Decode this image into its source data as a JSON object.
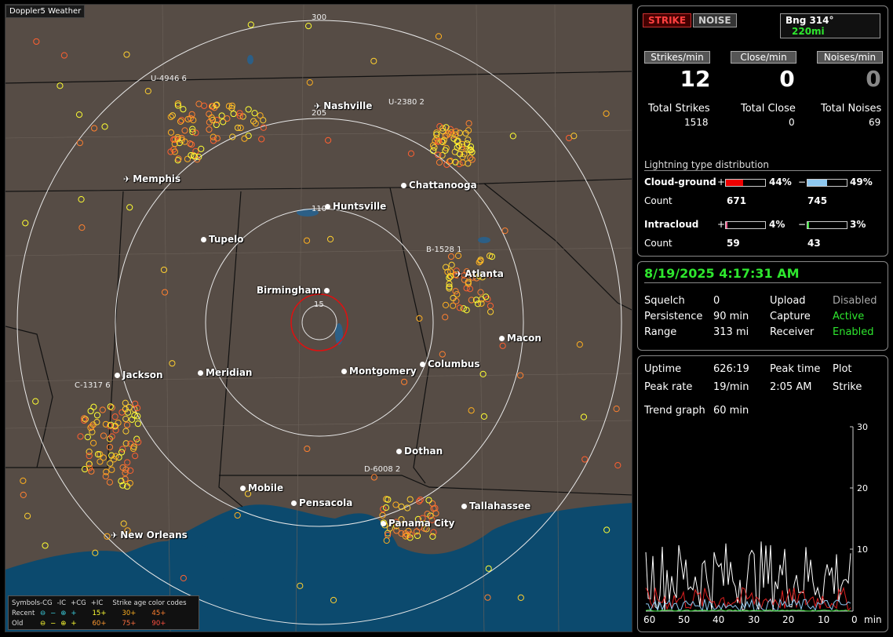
{
  "app_title": "Doppler5 Weather",
  "map": {
    "cities": [
      {
        "name": "Nashville",
        "type": "airport"
      },
      {
        "name": "Memphis",
        "type": "airport"
      },
      {
        "name": "Chattanooga",
        "type": "dot"
      },
      {
        "name": "Huntsville",
        "type": "dot"
      },
      {
        "name": "Tupelo",
        "type": "dot"
      },
      {
        "name": "Atlanta",
        "type": "airport"
      },
      {
        "name": "Birmingham",
        "type": "dot"
      },
      {
        "name": "Macon",
        "type": "dot"
      },
      {
        "name": "Jackson",
        "type": "dot"
      },
      {
        "name": "Meridian",
        "type": "dot"
      },
      {
        "name": "Montgomery",
        "type": "dot"
      },
      {
        "name": "Columbus",
        "type": "dot"
      },
      {
        "name": "Dothan",
        "type": "dot"
      },
      {
        "name": "Mobile",
        "type": "dot"
      },
      {
        "name": "Pensacola",
        "type": "dot"
      },
      {
        "name": "Tallahassee",
        "type": "dot"
      },
      {
        "name": "Panama City",
        "type": "dot"
      },
      {
        "name": "New Orleans",
        "type": "airport"
      }
    ],
    "range_labels": [
      "300",
      "205",
      "110",
      "15"
    ],
    "storm_cells": [
      "U-4946 6",
      "U-2380 2",
      "B-1528 1",
      "C-1317 6",
      "D-6008 2"
    ],
    "legend": {
      "symbols_label": "Symbols",
      "cols": [
        "-CG",
        "-IC",
        "+CG",
        "+IC"
      ],
      "recent_label": "Recent",
      "old_label": "Old",
      "age_title": "Strike age color codes",
      "recent_ages": [
        "15+",
        "30+",
        "45+"
      ],
      "old_ages": [
        "60+",
        "75+",
        "90+"
      ]
    }
  },
  "top_panel": {
    "strike_btn": "STRIKE",
    "noise_btn": "NOISE",
    "bearing_label": "Bng 314°",
    "bearing_range": "220mi",
    "headers": [
      "Strikes/min",
      "Close/min",
      "Noises/min"
    ],
    "rates": [
      "12",
      "0",
      "0"
    ],
    "totals_labels": [
      "Total Strikes",
      "Total Close",
      "Total Noises"
    ],
    "totals": [
      "1518",
      "0",
      "69"
    ],
    "dist_title": "Lightning type distribution",
    "cg_label": "Cloud-ground",
    "cg_pos_pct": "44%",
    "cg_neg_pct": "49%",
    "count_label": "Count",
    "cg_pos_count": "671",
    "cg_neg_count": "745",
    "ic_label": "Intracloud",
    "ic_pos_pct": "4%",
    "ic_neg_pct": "3%",
    "ic_pos_count": "59",
    "ic_neg_count": "43",
    "plus": "+",
    "minus": "−",
    "fills": {
      "cg_pos": 0.44,
      "cg_neg": 0.49,
      "ic_pos": 0.04,
      "ic_neg": 0.03
    }
  },
  "status_panel": {
    "datetime": "8/19/2025 4:17:31 AM",
    "squelch_label": "Squelch",
    "squelch": "0",
    "persistence_label": "Persistence",
    "persistence": "90 min",
    "range_label": "Range",
    "range": "313 mi",
    "upload_label": "Upload",
    "upload": "Disabled",
    "capture_label": "Capture",
    "capture": "Active",
    "receiver_label": "Receiver",
    "receiver": "Enabled"
  },
  "trend_panel": {
    "uptime_label": "Uptime",
    "uptime": "626:19",
    "peak_time_label": "Peak time",
    "peak_time": "2:05 AM",
    "plot_label": "Plot",
    "plot": "Strike",
    "peak_rate_label": "Peak rate",
    "peak_rate": "19/min",
    "trend_label": "Trend graph",
    "trend": "60 min",
    "y_ticks": [
      "30",
      "20",
      "10"
    ],
    "x_ticks": [
      "60",
      "50",
      "40",
      "30",
      "20",
      "10",
      "0"
    ],
    "x_unit": "min"
  }
}
